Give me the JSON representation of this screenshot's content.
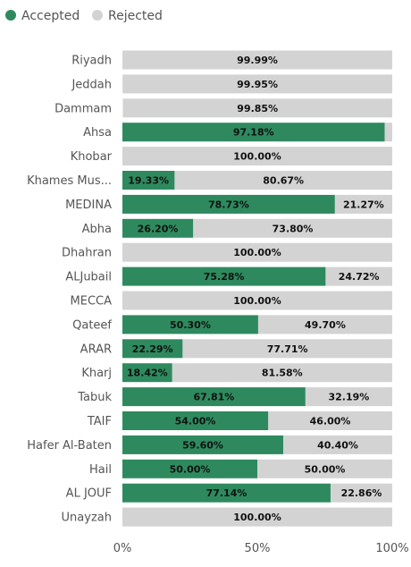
{
  "chart_data": {
    "type": "bar",
    "orientation": "horizontal",
    "stacked": "100%",
    "legend_position": "top-left",
    "grid": false,
    "xlim": [
      0,
      100
    ],
    "x_ticks": [
      "0%",
      "50%",
      "100%"
    ],
    "colors": {
      "Accepted": "#2e8a5e",
      "Rejected": "#d3d3d3"
    },
    "categories": [
      "Riyadh",
      "Jeddah",
      "Dammam",
      "Ahsa",
      "Khobar",
      "Khames Mus...",
      "MEDINA",
      "Abha",
      "Dhahran",
      "ALJubail",
      "MECCA",
      "Qateef",
      "ARAR",
      "Kharj",
      "Tabuk",
      "TAIF",
      "Hafer Al-Baten",
      "Hail",
      "AL JOUF",
      "Unayzah"
    ],
    "series": [
      {
        "name": "Accepted",
        "values": [
          0.01,
          0.05,
          0.15,
          97.18,
          0,
          19.33,
          78.73,
          26.2,
          0,
          75.28,
          0,
          50.3,
          22.29,
          18.42,
          67.81,
          54.0,
          59.6,
          50.0,
          77.14,
          0
        ],
        "labels": [
          "",
          "",
          "",
          "97.18%",
          "",
          "19.33%",
          "78.73%",
          "26.20%",
          "",
          "75.28%",
          "",
          "50.30%",
          "22.29%",
          "18.42%",
          "67.81%",
          "54.00%",
          "59.60%",
          "50.00%",
          "77.14%",
          ""
        ]
      },
      {
        "name": "Rejected",
        "values": [
          99.99,
          99.95,
          99.85,
          2.82,
          100,
          80.67,
          21.27,
          73.8,
          100,
          24.72,
          100,
          49.7,
          77.71,
          81.58,
          32.19,
          46.0,
          40.4,
          50.0,
          22.86,
          100
        ],
        "labels": [
          "99.99%",
          "99.95%",
          "99.85%",
          "",
          "100.00%",
          "80.67%",
          "21.27%",
          "73.80%",
          "100.00%",
          "24.72%",
          "100.00%",
          "49.70%",
          "77.71%",
          "81.58%",
          "32.19%",
          "46.00%",
          "40.40%",
          "50.00%",
          "22.86%",
          "100.00%"
        ]
      }
    ]
  }
}
